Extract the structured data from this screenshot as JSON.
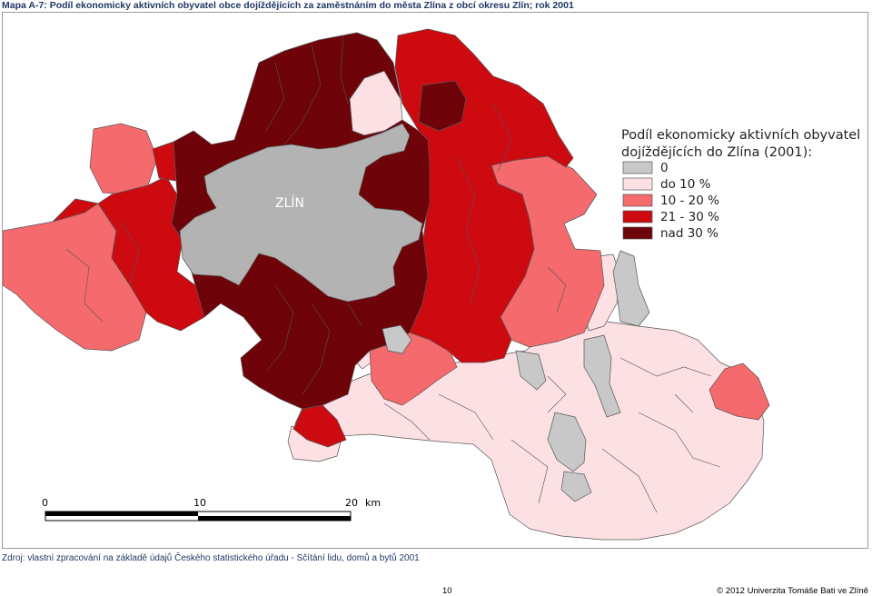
{
  "title": "Mapa A-7: Podíl ekonomicky aktivních obyvatel obce dojíždějících za zaměstnáním do města Zlína z obcí okresu Zlín; rok 2001",
  "city_label": "ZLÍN",
  "legend": {
    "title_line1": "Podíl ekonomicky aktivních obyvatel",
    "title_line2": "dojíždějících do Zlína (2001):",
    "items": [
      {
        "label": "0",
        "color": "#c8c8c8"
      },
      {
        "label": "do 10 %",
        "color": "#fde0e3"
      },
      {
        "label": "10 - 20 %",
        "color": "#f56a6c"
      },
      {
        "label": "21 - 30 %",
        "color": "#cc0a10"
      },
      {
        "label": "nad 30 %",
        "color": "#6e0309"
      }
    ]
  },
  "scale_bar": {
    "labels": [
      "0",
      "10",
      "20"
    ],
    "unit": "km"
  },
  "source": "Zdroj: vlastní zpracování na základě údajů Českého statistického úřadu - Sčítání lidu, domů a bytů 2001",
  "page_number": "10",
  "copyright": "© 2012 Univerzita Tomáše Bati ve Zlíně"
}
